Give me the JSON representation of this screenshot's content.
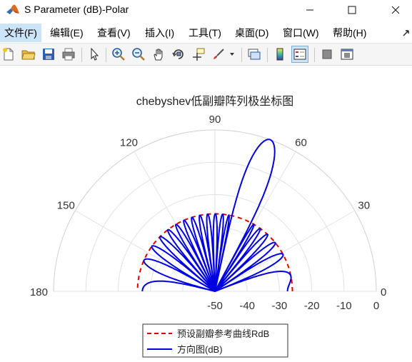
{
  "window": {
    "title": "S Parameter (dB)-Polar",
    "icon": "matlab-icon",
    "controls": [
      "minimize-icon",
      "maximize-icon",
      "close-icon"
    ]
  },
  "menu": {
    "items": [
      "文件(F)",
      "编辑(E)",
      "查看(V)",
      "插入(I)",
      "工具(T)",
      "桌面(D)",
      "窗口(W)",
      "帮助(H)"
    ],
    "active_index": 0
  },
  "toolbar": {
    "buttons": [
      "new-figure-icon",
      "open-file-icon",
      "save-icon",
      "print-icon",
      "select-arrow-icon",
      "zoom-in-icon",
      "zoom-out-icon",
      "pan-hand-icon",
      "rotate-3d-icon",
      "data-cursor-icon",
      "brush-icon",
      "link-plot-icon",
      "colorbar-icon",
      "legend-icon",
      "hide-plot-tools-icon",
      "show-plot-tools-icon"
    ]
  },
  "chart_data": {
    "type": "polar",
    "title": "chebyshev低副瓣阵列极坐标图",
    "theta_range_deg": [
      0,
      180
    ],
    "angle_ticks": [
      "0",
      "30",
      "60",
      "90",
      "120",
      "150",
      "180"
    ],
    "radial_range_db": [
      -50,
      0
    ],
    "radial_ticks": [
      "-50",
      "-40",
      "-30",
      "-20",
      "-10",
      "0"
    ],
    "grid": true,
    "legend_position": "bottom",
    "series": [
      {
        "name": "预设副瓣参考曲线RdB",
        "style": "dashed",
        "color": "#e00000",
        "constant_db": -26
      },
      {
        "name": "方向图(dB)",
        "style": "solid",
        "color": "#0000e0",
        "main_lobe_direction_deg": 70,
        "main_lobe_peak_db": 0,
        "sidelobe_level_db": -26
      }
    ]
  }
}
